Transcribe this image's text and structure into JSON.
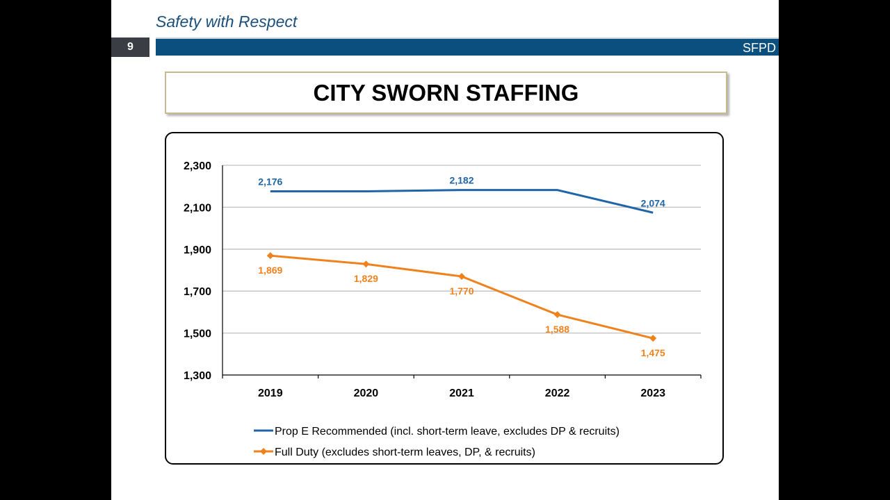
{
  "header": {
    "tagline": "Safety with Respect",
    "page_number": "9",
    "org": "SFPD"
  },
  "chart_data": {
    "type": "line",
    "title": "CITY SWORN STAFFING",
    "categories": [
      "2019",
      "2020",
      "2021",
      "2022",
      "2023"
    ],
    "ylim": [
      1300,
      2300
    ],
    "yticks": [
      1300,
      1500,
      1700,
      1900,
      2100,
      2300
    ],
    "ytick_labels": [
      "1,300",
      "1,500",
      "1,700",
      "1,900",
      "2,100",
      "2,300"
    ],
    "grid": true,
    "legend_position": "bottom",
    "series": [
      {
        "name": "Prop E Recommended (incl. short-term leave, excludes DP & recruits)",
        "color": "#1f65a8",
        "marker": "none",
        "values": [
          2176,
          2176,
          2182,
          2182,
          2074
        ],
        "labels": [
          "2,176",
          "",
          "2,182",
          "",
          "2,074"
        ]
      },
      {
        "name": "Full Duty (excludes short-term leaves, DP, & recruits)",
        "color": "#f0821e",
        "marker": "diamond",
        "values": [
          1869,
          1829,
          1770,
          1588,
          1475
        ],
        "labels": [
          "1,869",
          "1,829",
          "1,770",
          "1,588",
          "1,475"
        ]
      }
    ]
  }
}
